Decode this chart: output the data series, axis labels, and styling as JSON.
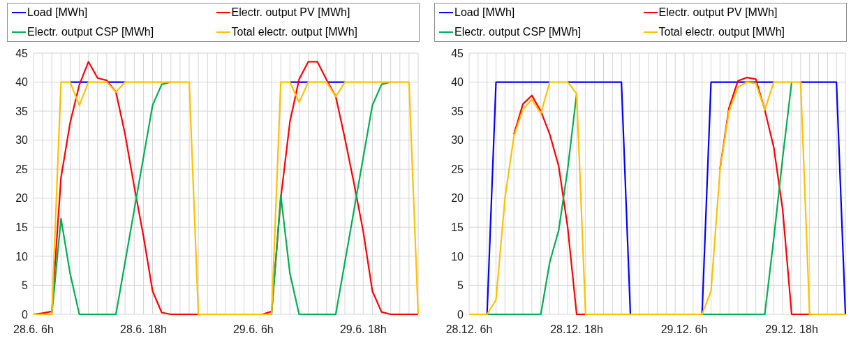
{
  "chart_data": [
    {
      "type": "line",
      "categories": [
        "28.6. 6h",
        null,
        null,
        null,
        null,
        null,
        null,
        null,
        null,
        null,
        null,
        null,
        "28.6. 18h",
        null,
        null,
        null,
        null,
        null,
        null,
        null,
        null,
        null,
        null,
        null,
        "29.6. 6h",
        null,
        null,
        null,
        null,
        null,
        null,
        null,
        null,
        null,
        null,
        null,
        "29.6. 18h",
        null,
        null,
        null,
        null,
        null,
        null
      ],
      "ylim": [
        0,
        45
      ],
      "yticks": [
        0,
        5,
        10,
        15,
        20,
        25,
        30,
        35,
        40,
        45
      ],
      "grid": true,
      "legend": "top",
      "series": [
        {
          "name": "Load [MWh]",
          "color": "#0000ff",
          "values": [
            null,
            null,
            null,
            null,
            40,
            40,
            40,
            null,
            40,
            40,
            40,
            null,
            null,
            null,
            null,
            null,
            null,
            null,
            null,
            null,
            null,
            null,
            null,
            null,
            null,
            null,
            null,
            null,
            40,
            40,
            40,
            null,
            40,
            40,
            40,
            null,
            null,
            null,
            null,
            null,
            null,
            null,
            null
          ]
        },
        {
          "name": "Electr. output PV [MWh]",
          "color": "#ff0000",
          "values": [
            0,
            0.2,
            0.5,
            23.5,
            33,
            39.5,
            43.5,
            40.7,
            40.3,
            38.3,
            31,
            22,
            13.5,
            4,
            0.3,
            0,
            0,
            0,
            0,
            null,
            null,
            null,
            null,
            null,
            null,
            0,
            0.5,
            20,
            33.2,
            40.5,
            43.5,
            43.5,
            40.4,
            37.5,
            30.3,
            22.5,
            14.3,
            4,
            0.4,
            0,
            0,
            0,
            0
          ]
        },
        {
          "name": "Electr. output CSP [MWh]",
          "color": "#00b050",
          "values": [
            null,
            null,
            0,
            16.5,
            7,
            0,
            0,
            0,
            0,
            0,
            9,
            18,
            27,
            36,
            39.6,
            40,
            null,
            null,
            null,
            null,
            null,
            null,
            null,
            null,
            null,
            null,
            0,
            20.5,
            7,
            0,
            0,
            0,
            0,
            0,
            9,
            18,
            27,
            36,
            39.6,
            40,
            null,
            null,
            null
          ]
        },
        {
          "name": "Total electr. output [MWh]",
          "color": "#ffc000",
          "values": [
            0,
            0,
            0,
            40,
            40,
            36,
            40,
            40,
            40,
            38.3,
            40,
            40,
            40,
            40,
            40,
            40,
            40,
            40,
            0,
            0,
            0,
            0,
            0,
            0,
            0,
            0,
            0,
            40,
            40,
            36.5,
            40,
            40,
            40,
            37.5,
            40,
            40,
            40,
            40,
            40,
            40,
            40,
            40,
            0
          ]
        }
      ]
    },
    {
      "type": "line",
      "categories": [
        "28.12. 6h",
        null,
        null,
        null,
        null,
        null,
        null,
        null,
        null,
        null,
        null,
        null,
        "28.12. 18h",
        null,
        null,
        null,
        null,
        null,
        null,
        null,
        null,
        null,
        null,
        null,
        "29.12. 6h",
        null,
        null,
        null,
        null,
        null,
        null,
        null,
        null,
        null,
        null,
        null,
        "29.12. 18h",
        null,
        null,
        null,
        null,
        null,
        null
      ],
      "ylim": [
        0,
        45
      ],
      "yticks": [
        0,
        5,
        10,
        15,
        20,
        25,
        30,
        35,
        40,
        45
      ],
      "grid": true,
      "legend": "top",
      "series": [
        {
          "name": "Load [MWh]",
          "color": "#0000ff",
          "values": [
            null,
            null,
            0,
            40,
            40,
            40,
            40,
            40,
            40,
            40,
            null,
            40,
            40,
            40,
            40,
            40,
            40,
            40,
            0,
            null,
            null,
            null,
            null,
            null,
            null,
            null,
            0,
            40,
            40,
            40,
            40,
            40,
            40,
            40,
            40,
            null,
            null,
            40,
            40,
            40,
            40,
            40,
            0
          ]
        },
        {
          "name": "Electr. output PV [MWh]",
          "color": "#ff0000",
          "values": [
            null,
            null,
            null,
            null,
            null,
            31,
            36.2,
            37.7,
            35,
            31,
            25.5,
            15,
            0,
            0,
            null,
            null,
            null,
            null,
            null,
            null,
            null,
            null,
            null,
            null,
            null,
            null,
            null,
            null,
            25,
            35.5,
            40.2,
            40.8,
            40.5,
            35.2,
            28.8,
            18,
            0,
            0,
            0,
            null,
            null,
            null,
            null
          ]
        },
        {
          "name": "Electr. output CSP [MWh]",
          "color": "#00b050",
          "values": [
            null,
            null,
            0,
            0,
            0,
            0,
            0,
            0,
            0,
            9,
            14.5,
            25,
            38,
            null,
            null,
            null,
            null,
            null,
            null,
            null,
            null,
            null,
            null,
            null,
            null,
            null,
            0,
            0,
            0,
            0,
            0,
            0,
            0,
            0,
            13,
            27,
            40,
            null,
            null,
            null,
            null,
            null,
            null
          ]
        },
        {
          "name": "Total electr. output [MWh]",
          "color": "#ffc000",
          "values": [
            0,
            0,
            0,
            2.5,
            20,
            30.7,
            35.3,
            37,
            34.6,
            40,
            40,
            40,
            38,
            0,
            0,
            0,
            0,
            0,
            0,
            0,
            0,
            0,
            0,
            0,
            0,
            0,
            0,
            4,
            24.8,
            35,
            39.1,
            40,
            39.8,
            35.2,
            40,
            40,
            40,
            40,
            0,
            0,
            0,
            0,
            0
          ]
        }
      ]
    }
  ]
}
